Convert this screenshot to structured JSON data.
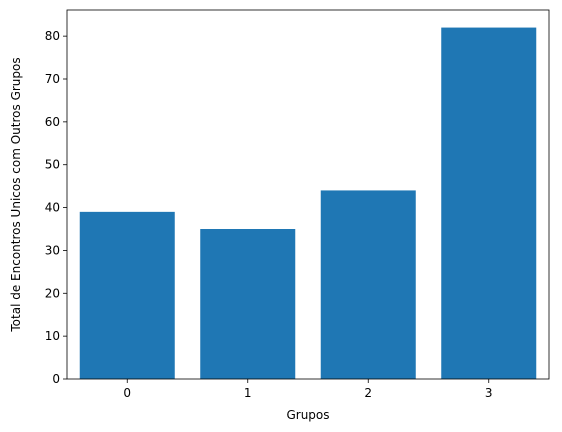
{
  "chart_data": {
    "type": "bar",
    "categories": [
      "0",
      "1",
      "2",
      "3"
    ],
    "values": [
      39,
      35,
      44,
      82
    ],
    "title": "",
    "xlabel": "Grupos",
    "ylabel": "Total de Encontros Unicos com Outros Grupos",
    "ylim": [
      0,
      86.1
    ],
    "yticks": [
      0,
      10,
      20,
      30,
      40,
      50,
      60,
      70,
      80
    ],
    "grid": false,
    "legend": "none",
    "bar_color": "#1f77b4"
  }
}
